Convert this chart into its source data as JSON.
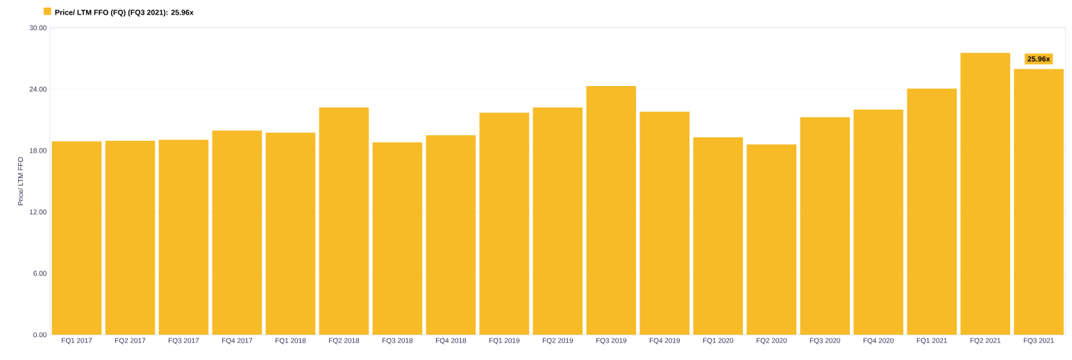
{
  "chart_data": {
    "type": "bar",
    "ylabel": "Price/ LTM FFO",
    "categories": [
      "FQ1 2017",
      "FQ2 2017",
      "FQ3 2017",
      "FQ4 2017",
      "FQ1 2018",
      "FQ2 2018",
      "FQ3 2018",
      "FQ4 2018",
      "FQ1 2019",
      "FQ2 2019",
      "FQ3 2019",
      "FQ4 2019",
      "FQ1 2020",
      "FQ2 2020",
      "FQ3 2020",
      "FQ4 2020",
      "FQ1 2021",
      "FQ2 2021",
      "FQ3 2021"
    ],
    "series": [
      {
        "name": "Price/ LTM FFO (FQ) (FQ3 2021): 25.96x",
        "color": "#f7bb28",
        "values": [
          18.9,
          18.95,
          19.05,
          19.95,
          19.75,
          22.2,
          18.8,
          19.5,
          21.7,
          22.2,
          24.3,
          21.8,
          19.3,
          18.6,
          21.25,
          22.0,
          24.05,
          27.55,
          25.96
        ],
        "value_labels": [
          null,
          null,
          null,
          null,
          null,
          null,
          null,
          null,
          null,
          null,
          null,
          null,
          null,
          null,
          null,
          null,
          null,
          null,
          "25.96x"
        ]
      }
    ],
    "ylim": [
      0,
      30
    ],
    "yticks": [
      {
        "value": 0,
        "label": "0.00"
      },
      {
        "value": 6,
        "label": "6.00"
      },
      {
        "value": 12,
        "label": "12.00"
      },
      {
        "value": 18,
        "label": "18.00"
      },
      {
        "value": 24,
        "label": "24.00"
      },
      {
        "value": 30,
        "label": "30.00"
      }
    ],
    "grid": "y",
    "legend": "top left"
  }
}
